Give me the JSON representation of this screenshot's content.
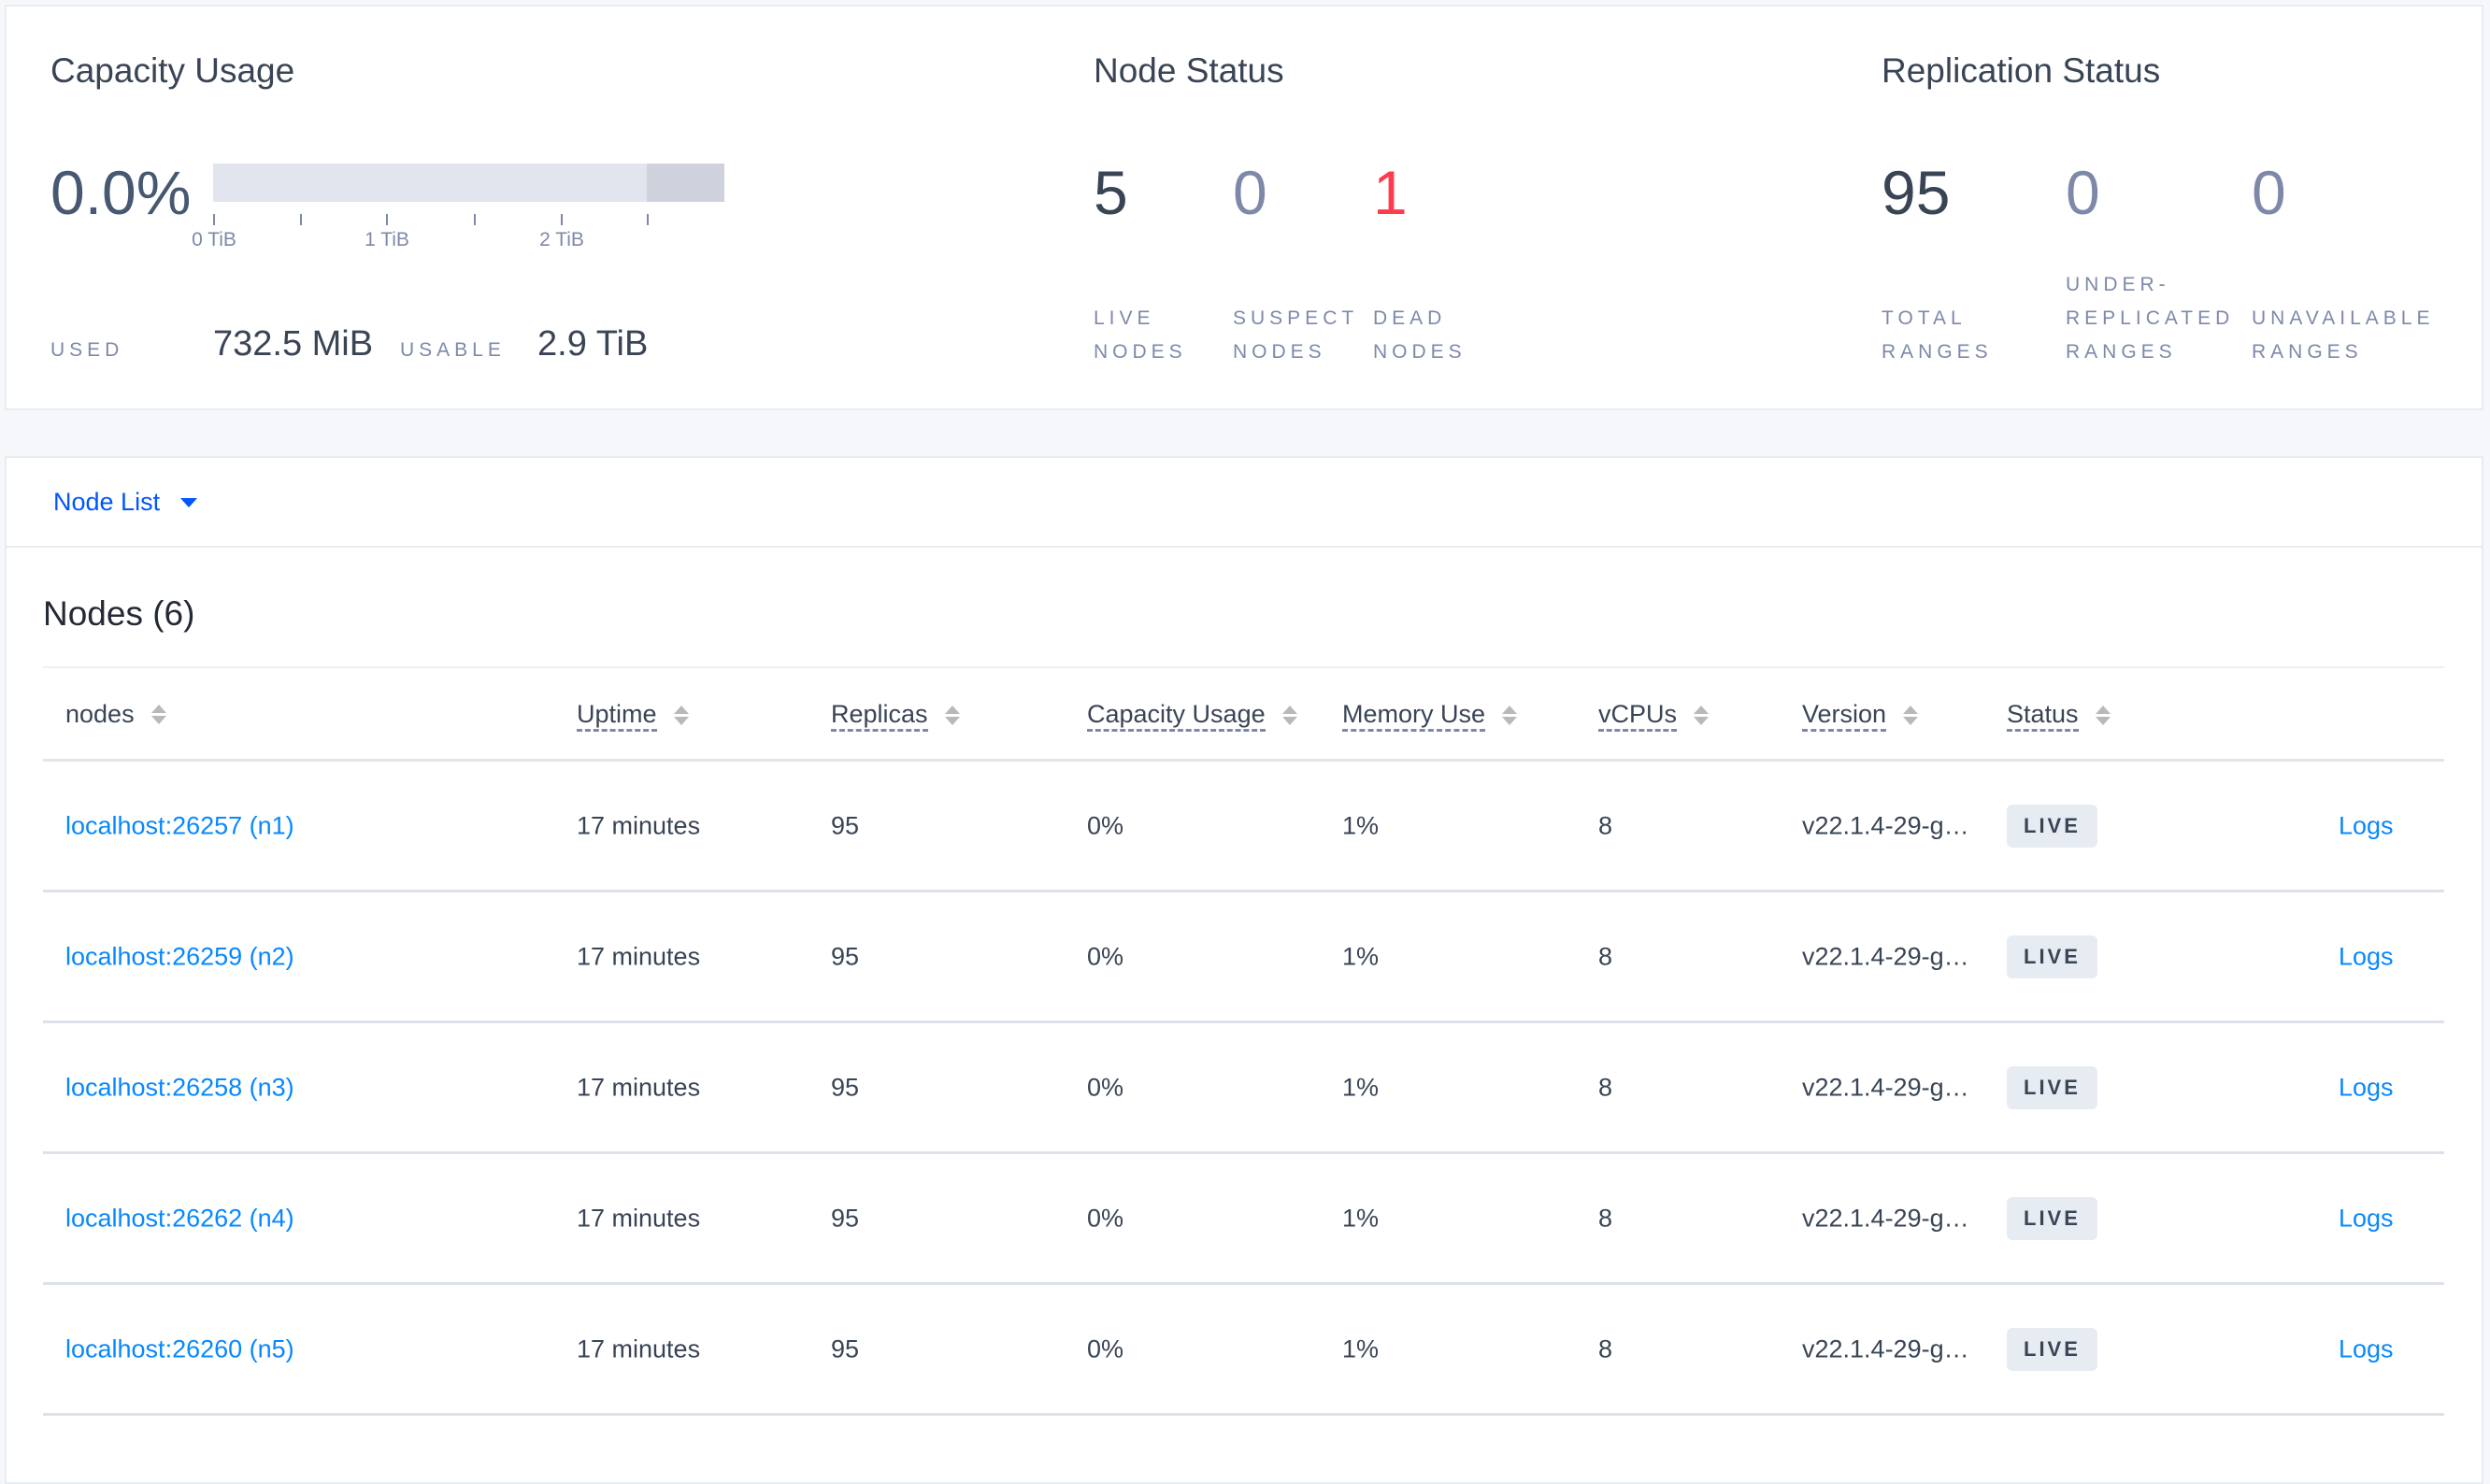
{
  "capacity": {
    "title": "Capacity Usage",
    "percent": "0.0%",
    "used_fraction": 0.0,
    "ticks": [
      "0 TiB",
      "1 TiB",
      "2 TiB"
    ],
    "used_label": "USED",
    "used_value": "732.5 MiB",
    "usable_label": "USABLE",
    "usable_value": "2.9 TiB"
  },
  "node_status": {
    "title": "Node Status",
    "stats": [
      {
        "value": "5",
        "label1": "LIVE",
        "label2": "NODES",
        "color": "#394455"
      },
      {
        "value": "0",
        "label1": "SUSPECT",
        "label2": "NODES",
        "color": "#7e89a9"
      },
      {
        "value": "1",
        "label1": "DEAD",
        "label2": "NODES",
        "color": "#ff3b4e"
      }
    ]
  },
  "replication_status": {
    "title": "Replication Status",
    "stats": [
      {
        "value": "95",
        "label0": "",
        "label1": "TOTAL",
        "label2": "RANGES",
        "color": "#394455"
      },
      {
        "value": "0",
        "label0": "UNDER-",
        "label1": "REPLICATED",
        "label2": "RANGES",
        "color": "#7e89a9"
      },
      {
        "value": "0",
        "label0": "",
        "label1": "UNAVAILABLE",
        "label2": "RANGES",
        "color": "#7e89a9"
      }
    ]
  },
  "node_list": {
    "dropdown_label": "Node List",
    "heading": "Nodes (6)",
    "columns": [
      "nodes",
      "Uptime",
      "Replicas",
      "Capacity Usage",
      "Memory Use",
      "vCPUs",
      "Version",
      "Status"
    ],
    "rows": [
      {
        "node": "localhost:26257 (n1)",
        "uptime": "17 minutes",
        "replicas": "95",
        "capacity": "0%",
        "memory": "1%",
        "vcpus": "8",
        "version": "v22.1.4-29-g…",
        "status": "LIVE",
        "logs": "Logs"
      },
      {
        "node": "localhost:26259 (n2)",
        "uptime": "17 minutes",
        "replicas": "95",
        "capacity": "0%",
        "memory": "1%",
        "vcpus": "8",
        "version": "v22.1.4-29-g…",
        "status": "LIVE",
        "logs": "Logs"
      },
      {
        "node": "localhost:26258 (n3)",
        "uptime": "17 minutes",
        "replicas": "95",
        "capacity": "0%",
        "memory": "1%",
        "vcpus": "8",
        "version": "v22.1.4-29-g…",
        "status": "LIVE",
        "logs": "Logs"
      },
      {
        "node": "localhost:26262 (n4)",
        "uptime": "17 minutes",
        "replicas": "95",
        "capacity": "0%",
        "memory": "1%",
        "vcpus": "8",
        "version": "v22.1.4-29-g…",
        "status": "LIVE",
        "logs": "Logs"
      },
      {
        "node": "localhost:26260 (n5)",
        "uptime": "17 minutes",
        "replicas": "95",
        "capacity": "0%",
        "memory": "1%",
        "vcpus": "8",
        "version": "v22.1.4-29-g…",
        "status": "LIVE",
        "logs": "Logs"
      }
    ]
  },
  "colors": {
    "text": "#394455",
    "muted": "#7e89a9",
    "link": "#0788ff",
    "danger": "#ff3b4e"
  }
}
